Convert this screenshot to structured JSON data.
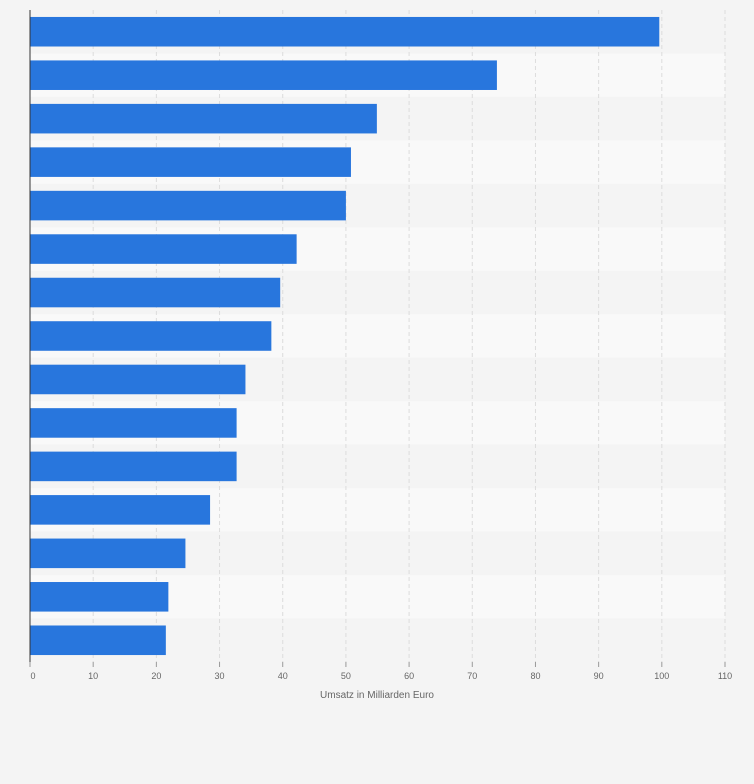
{
  "chart_data": {
    "type": "bar",
    "orientation": "horizontal",
    "categories": [
      "",
      "",
      "",
      "",
      "",
      "",
      "",
      "",
      "",
      "",
      "",
      "",
      "",
      "",
      ""
    ],
    "values": [
      99.6,
      73.9,
      54.9,
      50.8,
      50.0,
      42.2,
      39.6,
      38.2,
      34.1,
      32.7,
      32.7,
      28.5,
      24.6,
      21.9,
      21.5
    ],
    "title": "",
    "xlabel": "Umsatz in Milliarden Euro",
    "ylabel": "",
    "xlim": [
      0,
      110
    ],
    "x_ticks": [
      "0",
      "10",
      "20",
      "30",
      "40",
      "50",
      "60",
      "70",
      "80",
      "90",
      "100",
      "110"
    ],
    "grid": true,
    "legend": "none",
    "bar_color": "#2876dd",
    "band_colors": [
      "#f4f4f4",
      "#f9f9f9"
    ],
    "background": "#f4f4f4"
  }
}
